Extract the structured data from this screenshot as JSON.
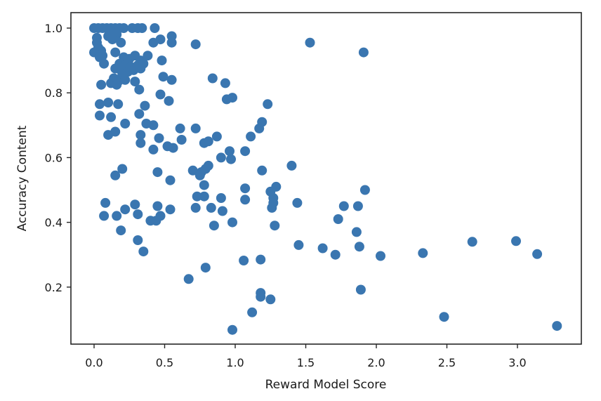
{
  "chart_data": {
    "type": "scatter",
    "title": "",
    "xlabel": "Reward Model Score",
    "ylabel": "Accuracy Content",
    "xlim": [
      -0.16,
      3.45
    ],
    "ylim": [
      0.02,
      1.05
    ],
    "x_ticks": [
      0.0,
      0.5,
      1.0,
      1.5,
      2.0,
      2.5,
      3.0
    ],
    "x_tick_labels": [
      "0.0",
      "0.5",
      "1.0",
      "1.5",
      "2.0",
      "2.5",
      "3.0"
    ],
    "y_ticks": [
      0.2,
      0.4,
      0.6,
      0.8,
      1.0
    ],
    "y_tick_labels": [
      "0.2",
      "0.4",
      "0.6",
      "0.8",
      "1.0"
    ],
    "grid": false,
    "legend": null,
    "marker_color": "#3a76b0",
    "marker_radius_px": 7,
    "points": [
      [
        0.0,
        1.0
      ],
      [
        0.03,
        1.0
      ],
      [
        0.06,
        1.0
      ],
      [
        0.09,
        1.0
      ],
      [
        0.12,
        1.0
      ],
      [
        0.15,
        1.0
      ],
      [
        0.18,
        1.0
      ],
      [
        0.21,
        1.0
      ],
      [
        0.27,
        1.0
      ],
      [
        0.31,
        1.0
      ],
      [
        0.34,
        1.0
      ],
      [
        0.43,
        1.0
      ],
      [
        0.12,
        0.99
      ],
      [
        0.16,
        0.98
      ],
      [
        0.1,
        0.975
      ],
      [
        0.13,
        0.965
      ],
      [
        0.19,
        0.955
      ],
      [
        0.02,
        0.97
      ],
      [
        0.02,
        0.955
      ],
      [
        0.03,
        0.94
      ],
      [
        0.05,
        0.93
      ],
      [
        0.0,
        0.925
      ],
      [
        0.06,
        0.915
      ],
      [
        0.04,
        0.91
      ],
      [
        0.07,
        0.89
      ],
      [
        0.15,
        0.925
      ],
      [
        0.21,
        0.91
      ],
      [
        0.25,
        0.905
      ],
      [
        0.29,
        0.915
      ],
      [
        0.33,
        0.9
      ],
      [
        0.38,
        0.915
      ],
      [
        0.18,
        0.89
      ],
      [
        0.22,
        0.885
      ],
      [
        0.26,
        0.88
      ],
      [
        0.31,
        0.885
      ],
      [
        0.35,
        0.89
      ],
      [
        0.15,
        0.875
      ],
      [
        0.19,
        0.87
      ],
      [
        0.24,
        0.865
      ],
      [
        0.28,
        0.87
      ],
      [
        0.33,
        0.875
      ],
      [
        0.2,
        0.855
      ],
      [
        0.14,
        0.845
      ],
      [
        0.17,
        0.835
      ],
      [
        0.22,
        0.84
      ],
      [
        0.12,
        0.83
      ],
      [
        0.16,
        0.825
      ],
      [
        0.05,
        0.825
      ],
      [
        0.29,
        0.835
      ],
      [
        0.32,
        0.81
      ],
      [
        0.42,
        0.955
      ],
      [
        0.47,
        0.965
      ],
      [
        0.55,
        0.975
      ],
      [
        0.55,
        0.955
      ],
      [
        0.72,
        0.95
      ],
      [
        0.48,
        0.9
      ],
      [
        0.49,
        0.85
      ],
      [
        0.55,
        0.84
      ],
      [
        0.47,
        0.795
      ],
      [
        0.53,
        0.775
      ],
      [
        0.84,
        0.845
      ],
      [
        0.93,
        0.83
      ],
      [
        0.94,
        0.78
      ],
      [
        0.98,
        0.785
      ],
      [
        1.23,
        0.765
      ],
      [
        0.04,
        0.765
      ],
      [
        0.1,
        0.77
      ],
      [
        0.17,
        0.765
      ],
      [
        0.04,
        0.73
      ],
      [
        0.12,
        0.725
      ],
      [
        0.32,
        0.735
      ],
      [
        0.36,
        0.76
      ],
      [
        0.22,
        0.705
      ],
      [
        0.37,
        0.705
      ],
      [
        0.42,
        0.7
      ],
      [
        0.1,
        0.67
      ],
      [
        0.15,
        0.68
      ],
      [
        0.33,
        0.67
      ],
      [
        0.33,
        0.645
      ],
      [
        0.46,
        0.66
      ],
      [
        0.61,
        0.69
      ],
      [
        0.72,
        0.69
      ],
      [
        0.62,
        0.655
      ],
      [
        0.52,
        0.635
      ],
      [
        0.56,
        0.63
      ],
      [
        0.42,
        0.625
      ],
      [
        0.78,
        0.645
      ],
      [
        0.81,
        0.65
      ],
      [
        0.87,
        0.665
      ],
      [
        0.9,
        0.6
      ],
      [
        0.96,
        0.62
      ],
      [
        0.97,
        0.595
      ],
      [
        1.07,
        0.62
      ],
      [
        1.11,
        0.665
      ],
      [
        1.17,
        0.69
      ],
      [
        1.19,
        0.71
      ],
      [
        0.15,
        0.545
      ],
      [
        0.2,
        0.565
      ],
      [
        0.45,
        0.555
      ],
      [
        0.54,
        0.53
      ],
      [
        0.7,
        0.56
      ],
      [
        0.75,
        0.545
      ],
      [
        0.76,
        0.555
      ],
      [
        0.79,
        0.565
      ],
      [
        0.81,
        0.575
      ],
      [
        0.78,
        0.515
      ],
      [
        1.19,
        0.56
      ],
      [
        1.4,
        0.575
      ],
      [
        0.08,
        0.46
      ],
      [
        0.07,
        0.42
      ],
      [
        0.16,
        0.42
      ],
      [
        0.22,
        0.44
      ],
      [
        0.29,
        0.455
      ],
      [
        0.31,
        0.425
      ],
      [
        0.45,
        0.45
      ],
      [
        0.54,
        0.44
      ],
      [
        0.72,
        0.445
      ],
      [
        0.73,
        0.48
      ],
      [
        0.78,
        0.48
      ],
      [
        0.83,
        0.445
      ],
      [
        0.9,
        0.475
      ],
      [
        0.91,
        0.435
      ],
      [
        0.85,
        0.39
      ],
      [
        0.98,
        0.4
      ],
      [
        1.07,
        0.505
      ],
      [
        1.07,
        0.47
      ],
      [
        1.25,
        0.495
      ],
      [
        1.26,
        0.445
      ],
      [
        1.27,
        0.46
      ],
      [
        1.27,
        0.475
      ],
      [
        1.29,
        0.51
      ],
      [
        1.28,
        0.39
      ],
      [
        1.44,
        0.46
      ],
      [
        0.44,
        0.405
      ],
      [
        0.4,
        0.405
      ],
      [
        0.47,
        0.42
      ],
      [
        0.19,
        0.375
      ],
      [
        0.31,
        0.345
      ],
      [
        0.35,
        0.31
      ],
      [
        1.45,
        0.33
      ],
      [
        1.62,
        0.32
      ],
      [
        1.71,
        0.3
      ],
      [
        1.73,
        0.41
      ],
      [
        1.77,
        0.45
      ],
      [
        1.87,
        0.45
      ],
      [
        1.86,
        0.37
      ],
      [
        1.88,
        0.325
      ],
      [
        1.92,
        0.5
      ],
      [
        2.03,
        0.296
      ],
      [
        2.33,
        0.305
      ],
      [
        2.68,
        0.34
      ],
      [
        2.99,
        0.342
      ],
      [
        3.14,
        0.302
      ],
      [
        0.67,
        0.225
      ],
      [
        0.79,
        0.26
      ],
      [
        1.06,
        0.282
      ],
      [
        1.18,
        0.285
      ],
      [
        1.18,
        0.182
      ],
      [
        1.18,
        0.17
      ],
      [
        1.25,
        0.162
      ],
      [
        1.12,
        0.122
      ],
      [
        0.98,
        0.068
      ],
      [
        1.89,
        0.192
      ],
      [
        2.48,
        0.108
      ],
      [
        3.28,
        0.08
      ],
      [
        1.53,
        0.955
      ],
      [
        1.91,
        0.925
      ]
    ]
  }
}
